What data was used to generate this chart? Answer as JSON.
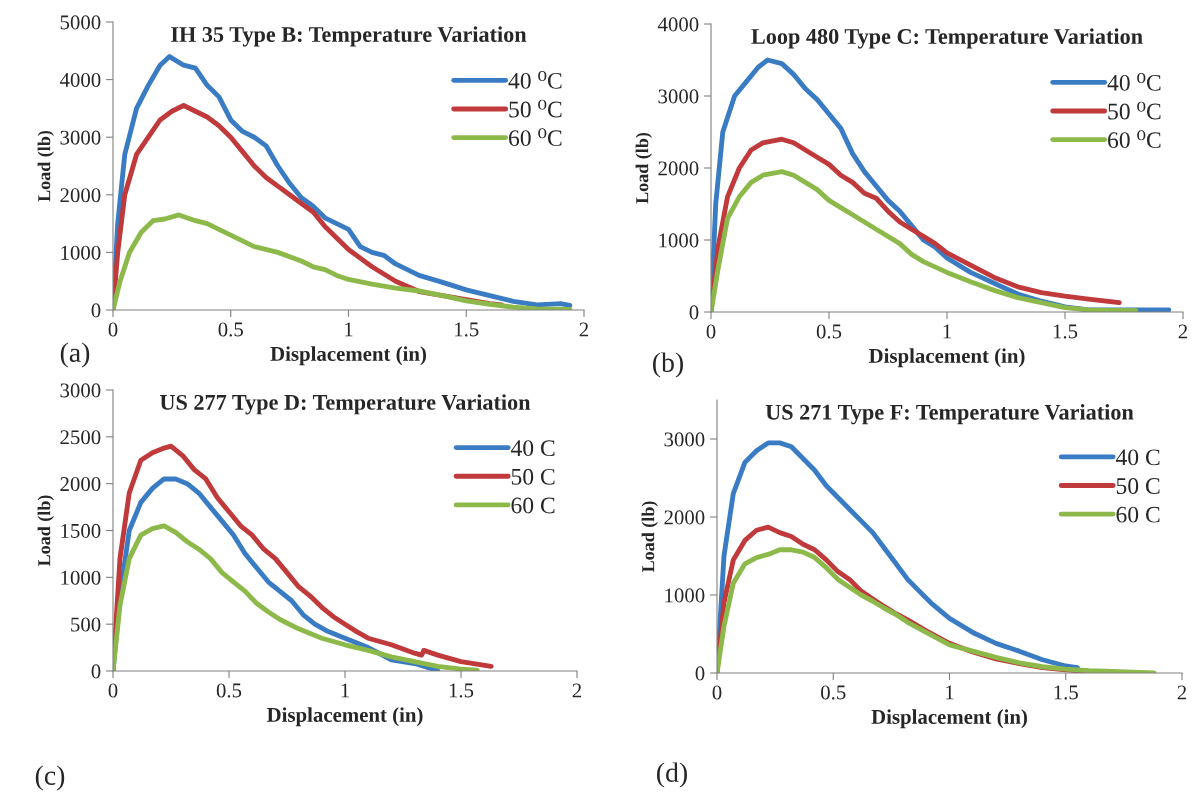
{
  "chart_data": [
    {
      "type": "line",
      "title": "IH 35 Type B: Temperature Variation",
      "xlabel": "Displacement (in)",
      "ylabel": "Load (lb)",
      "annotations": [
        "(a)"
      ],
      "xlim": [
        0,
        2
      ],
      "ylim": [
        0,
        5000
      ],
      "xticks": [
        0,
        0.5,
        1,
        1.5,
        2
      ],
      "yticks": [
        0,
        1000,
        2000,
        3000,
        4000,
        5000
      ],
      "legend": "top right",
      "grid": false,
      "series": [
        {
          "name": "40 ⁰C",
          "color": "#3a7cc4",
          "x": [
            0,
            0.02,
            0.05,
            0.1,
            0.15,
            0.2,
            0.24,
            0.3,
            0.35,
            0.4,
            0.45,
            0.5,
            0.55,
            0.6,
            0.65,
            0.7,
            0.75,
            0.8,
            0.85,
            0.9,
            0.95,
            1.0,
            1.05,
            1.1,
            1.15,
            1.2,
            1.3,
            1.4,
            1.5,
            1.6,
            1.7,
            1.8,
            1.9,
            1.94
          ],
          "values": [
            0,
            1500,
            2700,
            3500,
            3900,
            4250,
            4400,
            4250,
            4200,
            3900,
            3700,
            3300,
            3100,
            3000,
            2850,
            2500,
            2200,
            1950,
            1800,
            1600,
            1500,
            1400,
            1100,
            1000,
            950,
            800,
            600,
            480,
            350,
            250,
            150,
            90,
            110,
            80
          ]
        },
        {
          "name": "50 ⁰C",
          "color": "#c0393b",
          "x": [
            0,
            0.02,
            0.05,
            0.1,
            0.15,
            0.2,
            0.25,
            0.3,
            0.35,
            0.4,
            0.45,
            0.5,
            0.55,
            0.6,
            0.65,
            0.7,
            0.75,
            0.8,
            0.85,
            0.9,
            0.95,
            1.0,
            1.05,
            1.1,
            1.2,
            1.3,
            1.4,
            1.5,
            1.6,
            1.65
          ],
          "values": [
            0,
            1000,
            2000,
            2700,
            3000,
            3300,
            3450,
            3550,
            3450,
            3350,
            3200,
            3000,
            2750,
            2500,
            2300,
            2150,
            2000,
            1850,
            1700,
            1450,
            1250,
            1050,
            900,
            750,
            500,
            320,
            250,
            180,
            110,
            90
          ]
        },
        {
          "name": "60 ⁰C",
          "color": "#8db94a",
          "x": [
            0,
            0.03,
            0.07,
            0.12,
            0.17,
            0.22,
            0.28,
            0.35,
            0.4,
            0.45,
            0.5,
            0.55,
            0.6,
            0.7,
            0.8,
            0.85,
            0.9,
            0.95,
            1.0,
            1.1,
            1.2,
            1.3,
            1.4,
            1.5,
            1.6,
            1.7,
            1.8,
            1.94
          ],
          "values": [
            0,
            500,
            1000,
            1350,
            1550,
            1580,
            1650,
            1550,
            1500,
            1400,
            1300,
            1200,
            1100,
            1000,
            850,
            750,
            700,
            600,
            530,
            450,
            380,
            330,
            250,
            160,
            100,
            50,
            20,
            10
          ]
        }
      ]
    },
    {
      "type": "line",
      "title": "Loop 480 Type C: Temperature Variation",
      "xlabel": "Displacement (in)",
      "ylabel": "Load (lb)",
      "annotations": [
        "(b)"
      ],
      "xlim": [
        0,
        2
      ],
      "ylim": [
        0,
        4000
      ],
      "xticks": [
        0,
        0.5,
        1,
        1.5,
        2
      ],
      "yticks": [
        0,
        1000,
        2000,
        3000,
        4000
      ],
      "legend": "top right",
      "grid": false,
      "series": [
        {
          "name": "40 ⁰C",
          "color": "#3a7cc4",
          "x": [
            0,
            0.02,
            0.05,
            0.1,
            0.15,
            0.2,
            0.24,
            0.3,
            0.35,
            0.4,
            0.45,
            0.5,
            0.55,
            0.6,
            0.65,
            0.7,
            0.75,
            0.8,
            0.85,
            0.9,
            0.95,
            1.0,
            1.1,
            1.2,
            1.3,
            1.4,
            1.5,
            1.6,
            1.8,
            1.94
          ],
          "values": [
            0,
            1500,
            2500,
            3000,
            3200,
            3400,
            3500,
            3450,
            3300,
            3100,
            2950,
            2750,
            2550,
            2200,
            1950,
            1750,
            1550,
            1400,
            1200,
            1000,
            900,
            750,
            550,
            400,
            250,
            150,
            70,
            30,
            30,
            30
          ]
        },
        {
          "name": "50 ⁰C",
          "color": "#c0393b",
          "x": [
            0,
            0.03,
            0.07,
            0.12,
            0.17,
            0.22,
            0.3,
            0.35,
            0.4,
            0.45,
            0.5,
            0.55,
            0.6,
            0.65,
            0.7,
            0.75,
            0.8,
            0.85,
            0.9,
            0.95,
            1.0,
            1.1,
            1.2,
            1.3,
            1.4,
            1.5,
            1.6,
            1.73
          ],
          "values": [
            0,
            900,
            1600,
            2000,
            2250,
            2350,
            2400,
            2350,
            2250,
            2150,
            2050,
            1900,
            1800,
            1650,
            1580,
            1400,
            1250,
            1150,
            1050,
            950,
            820,
            650,
            480,
            350,
            270,
            220,
            180,
            130
          ]
        },
        {
          "name": "60 ⁰C",
          "color": "#8db94a",
          "x": [
            0,
            0.03,
            0.07,
            0.12,
            0.17,
            0.22,
            0.3,
            0.35,
            0.4,
            0.45,
            0.5,
            0.55,
            0.6,
            0.7,
            0.8,
            0.85,
            0.9,
            1.0,
            1.1,
            1.2,
            1.3,
            1.4,
            1.5,
            1.6,
            1.8
          ],
          "values": [
            0,
            600,
            1300,
            1600,
            1800,
            1900,
            1950,
            1900,
            1800,
            1700,
            1550,
            1450,
            1350,
            1150,
            950,
            800,
            700,
            550,
            420,
            300,
            200,
            130,
            60,
            30,
            20
          ]
        }
      ]
    },
    {
      "type": "line",
      "title": "US 277 Type D: Temperature Variation",
      "xlabel": "Displacement (in)",
      "ylabel": "Load (lb)",
      "annotations": [
        "(c)"
      ],
      "xlim": [
        0,
        2
      ],
      "ylim": [
        0,
        3000
      ],
      "xticks": [
        0,
        0.5,
        1,
        1.5,
        2
      ],
      "yticks": [
        0,
        500,
        1000,
        1500,
        2000,
        2500,
        3000
      ],
      "legend": "top right",
      "grid": false,
      "series": [
        {
          "name": "40 C",
          "color": "#3a7cc4",
          "x": [
            0,
            0.03,
            0.07,
            0.12,
            0.17,
            0.22,
            0.27,
            0.32,
            0.37,
            0.42,
            0.47,
            0.52,
            0.57,
            0.62,
            0.67,
            0.72,
            0.77,
            0.82,
            0.87,
            0.92,
            1.0,
            1.1,
            1.2,
            1.3,
            1.38,
            1.4
          ],
          "values": [
            0,
            800,
            1500,
            1800,
            1950,
            2050,
            2050,
            2000,
            1900,
            1750,
            1600,
            1450,
            1250,
            1100,
            950,
            850,
            750,
            600,
            500,
            430,
            350,
            250,
            120,
            80,
            20,
            0
          ]
        },
        {
          "name": "50 C",
          "color": "#c0393b",
          "x": [
            0,
            0.03,
            0.07,
            0.12,
            0.17,
            0.22,
            0.25,
            0.3,
            0.35,
            0.4,
            0.45,
            0.5,
            0.55,
            0.6,
            0.65,
            0.7,
            0.75,
            0.8,
            0.85,
            0.9,
            0.95,
            1.0,
            1.05,
            1.1,
            1.2,
            1.3,
            1.33,
            1.34,
            1.4,
            1.5,
            1.63
          ],
          "values": [
            0,
            1200,
            1900,
            2250,
            2330,
            2380,
            2400,
            2300,
            2150,
            2050,
            1850,
            1700,
            1550,
            1450,
            1300,
            1200,
            1050,
            900,
            800,
            680,
            580,
            500,
            420,
            350,
            280,
            190,
            170,
            220,
            170,
            100,
            50
          ]
        },
        {
          "name": "60 C",
          "color": "#8db94a",
          "x": [
            0,
            0.03,
            0.07,
            0.12,
            0.17,
            0.22,
            0.27,
            0.32,
            0.37,
            0.42,
            0.47,
            0.52,
            0.57,
            0.62,
            0.67,
            0.72,
            0.8,
            0.9,
            1.0,
            1.1,
            1.2,
            1.3,
            1.4,
            1.5,
            1.57
          ],
          "values": [
            0,
            700,
            1200,
            1450,
            1520,
            1550,
            1480,
            1380,
            1300,
            1200,
            1050,
            950,
            850,
            720,
            630,
            550,
            450,
            350,
            280,
            220,
            150,
            100,
            50,
            20,
            10
          ]
        }
      ]
    },
    {
      "type": "line",
      "title": "US 271 Type F: Temperature Variation",
      "xlabel": "Displacement (in)",
      "ylabel": "Load (lb)",
      "annotations": [
        "(d)"
      ],
      "xlim": [
        0,
        2
      ],
      "ylim": [
        0,
        3500
      ],
      "xticks": [
        0,
        0.5,
        1,
        1.5,
        2
      ],
      "yticks": [
        0,
        1000,
        2000,
        3000
      ],
      "legend": "top right",
      "grid": false,
      "series": [
        {
          "name": "40 C",
          "color": "#3a7cc4",
          "x": [
            0,
            0.03,
            0.07,
            0.12,
            0.17,
            0.22,
            0.27,
            0.32,
            0.37,
            0.42,
            0.47,
            0.52,
            0.57,
            0.62,
            0.67,
            0.72,
            0.77,
            0.82,
            0.87,
            0.92,
            1.0,
            1.1,
            1.2,
            1.3,
            1.4,
            1.5,
            1.55
          ],
          "values": [
            0,
            1500,
            2300,
            2700,
            2850,
            2950,
            2950,
            2900,
            2750,
            2600,
            2400,
            2250,
            2100,
            1950,
            1800,
            1600,
            1400,
            1200,
            1050,
            900,
            700,
            520,
            380,
            280,
            170,
            90,
            70
          ]
        },
        {
          "name": "50 C",
          "color": "#c0393b",
          "x": [
            0,
            0.03,
            0.07,
            0.12,
            0.17,
            0.22,
            0.27,
            0.32,
            0.37,
            0.42,
            0.47,
            0.52,
            0.57,
            0.62,
            0.67,
            0.72,
            0.77,
            0.82,
            0.9,
            1.0,
            1.1,
            1.2,
            1.3,
            1.4,
            1.5,
            1.6,
            1.7
          ],
          "values": [
            0,
            900,
            1450,
            1700,
            1830,
            1870,
            1800,
            1750,
            1650,
            1580,
            1450,
            1300,
            1200,
            1050,
            950,
            850,
            760,
            680,
            540,
            380,
            270,
            180,
            120,
            70,
            40,
            20,
            10
          ]
        },
        {
          "name": "60 C",
          "color": "#8db94a",
          "x": [
            0,
            0.03,
            0.07,
            0.12,
            0.17,
            0.22,
            0.27,
            0.32,
            0.37,
            0.42,
            0.47,
            0.52,
            0.57,
            0.62,
            0.67,
            0.72,
            0.77,
            0.82,
            0.9,
            1.0,
            1.1,
            1.2,
            1.3,
            1.4,
            1.5,
            1.6,
            1.7,
            1.88
          ],
          "values": [
            0,
            600,
            1150,
            1400,
            1480,
            1520,
            1580,
            1580,
            1550,
            1480,
            1350,
            1200,
            1100,
            1000,
            920,
            830,
            750,
            650,
            520,
            360,
            280,
            200,
            130,
            80,
            50,
            30,
            20,
            0
          ]
        }
      ]
    }
  ]
}
